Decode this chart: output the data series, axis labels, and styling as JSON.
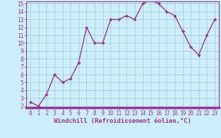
{
  "x": [
    0,
    1,
    2,
    3,
    4,
    5,
    6,
    7,
    8,
    9,
    10,
    11,
    12,
    13,
    14,
    15,
    16,
    17,
    18,
    19,
    20,
    21,
    22,
    23
  ],
  "y": [
    2.5,
    2.0,
    3.5,
    6.0,
    5.0,
    5.5,
    7.5,
    12.0,
    10.0,
    10.0,
    13.0,
    13.0,
    13.5,
    13.0,
    15.0,
    15.5,
    15.0,
    14.0,
    13.5,
    11.5,
    9.5,
    8.5,
    11.0,
    13.0
  ],
  "line_color": "#993399",
  "marker": "D",
  "marker_size": 2,
  "bg_color": "#cceeff",
  "grid_color": "#99ccbb",
  "xlabel": "Windchill (Refroidissement éolien,°C)",
  "ylim_min": 1.8,
  "ylim_max": 15.3,
  "xlim_min": -0.5,
  "xlim_max": 23.5,
  "yticks": [
    2,
    3,
    4,
    5,
    6,
    7,
    8,
    9,
    10,
    11,
    12,
    13,
    14,
    15
  ],
  "xticks": [
    0,
    1,
    2,
    3,
    4,
    5,
    6,
    7,
    8,
    9,
    10,
    11,
    12,
    13,
    14,
    15,
    16,
    17,
    18,
    19,
    20,
    21,
    22,
    23
  ],
  "tick_color": "#993399",
  "label_fontsize": 6.5,
  "tick_fontsize": 5.5,
  "spine_color": "#993399",
  "axis_bg_color": "#993399",
  "linewidth": 1.0
}
